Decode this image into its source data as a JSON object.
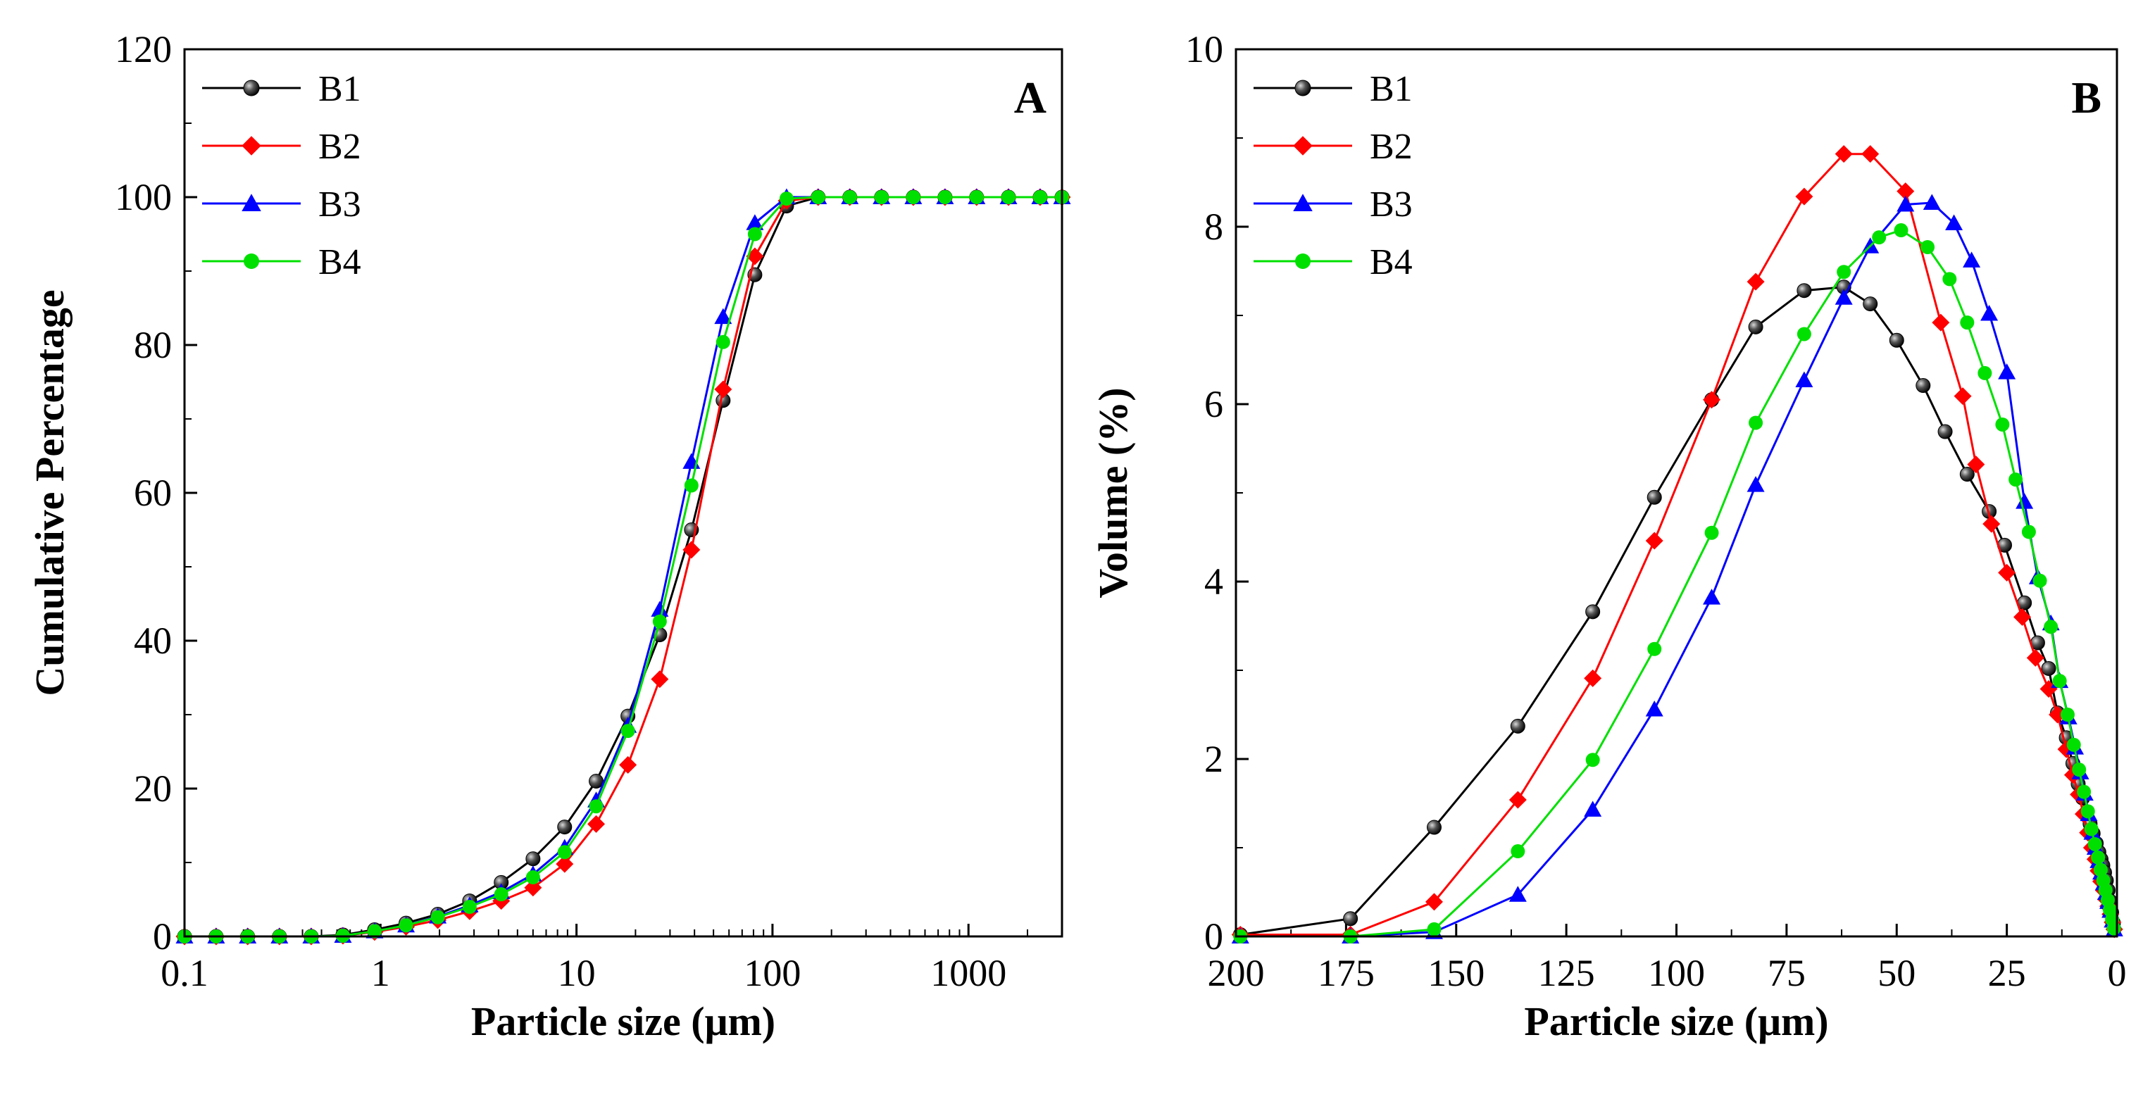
{
  "chart_data": [
    {
      "type": "line",
      "panel": "A",
      "xlabel": "Particle size (μm)",
      "ylabel": "Cumulative Percentage",
      "xscale": "log",
      "xlim": [
        0.1,
        3000
      ],
      "ylim": [
        0,
        120
      ],
      "xticks": [
        0.1,
        1,
        10,
        100,
        1000
      ],
      "xtick_labels": [
        "0.1",
        "1",
        "10",
        "100",
        "1000"
      ],
      "yticks": [
        0,
        20,
        40,
        60,
        80,
        100,
        120
      ],
      "ytick_labels": [
        "0",
        "20",
        "40",
        "60",
        "80",
        "100",
        "120"
      ],
      "legend_position": "top-left",
      "x": [
        0.1,
        0.145,
        0.21,
        0.305,
        0.443,
        0.643,
        0.933,
        1.35,
        1.96,
        2.85,
        4.13,
        6.0,
        8.7,
        12.6,
        18.3,
        26.6,
        38.6,
        56.0,
        81.3,
        118,
        171,
        248,
        360,
        523,
        759,
        1100,
        1600,
        2320,
        3000
      ],
      "series": [
        {
          "name": "B1",
          "color": "#000000",
          "marker": "sphere",
          "values": [
            0,
            0,
            0,
            0,
            0,
            0.2,
            0.9,
            1.8,
            3.0,
            4.8,
            7.3,
            10.5,
            14.8,
            21.0,
            29.8,
            40.8,
            55.0,
            72.5,
            89.5,
            98.8,
            100,
            100,
            100,
            100,
            100,
            100,
            100,
            100,
            100
          ]
        },
        {
          "name": "B2",
          "color": "#ff0000",
          "marker": "diamond",
          "values": [
            0,
            0,
            0,
            0,
            0,
            0.1,
            0.6,
            1.3,
            2.2,
            3.4,
            4.8,
            6.6,
            9.8,
            15.2,
            23.2,
            34.8,
            52.3,
            74.0,
            92.0,
            99.5,
            100,
            100,
            100,
            100,
            100,
            100,
            100,
            100,
            100
          ]
        },
        {
          "name": "B3",
          "color": "#0000ff",
          "marker": "triangle",
          "values": [
            0,
            0,
            0,
            0,
            0,
            0.1,
            0.7,
            1.5,
            2.7,
            4.2,
            6.0,
            8.4,
            12.0,
            18.4,
            28.5,
            44.2,
            64.2,
            83.8,
            96.5,
            100,
            100,
            100,
            100,
            100,
            100,
            100,
            100,
            100,
            100
          ]
        },
        {
          "name": "B4",
          "color": "#00e000",
          "marker": "circle",
          "values": [
            0,
            0,
            0,
            0,
            0,
            0.1,
            0.7,
            1.5,
            2.6,
            4.0,
            5.7,
            8.0,
            11.4,
            17.6,
            27.8,
            42.6,
            61.0,
            80.4,
            95.0,
            99.8,
            100,
            100,
            100,
            100,
            100,
            100,
            100,
            100,
            100
          ]
        }
      ]
    },
    {
      "type": "line",
      "panel": "B",
      "xlabel": "Particle size (μm)",
      "ylabel": "Volume (%)",
      "xscale": "linear",
      "x_reversed": true,
      "xlim": [
        200,
        0
      ],
      "ylim": [
        0,
        10
      ],
      "xticks": [
        200,
        175,
        150,
        125,
        100,
        75,
        50,
        25,
        0
      ],
      "xtick_labels": [
        "200",
        "175",
        "150",
        "125",
        "100",
        "75",
        "50",
        "25",
        "0"
      ],
      "yticks": [
        0,
        2,
        4,
        6,
        8,
        10
      ],
      "ytick_labels": [
        "0",
        "2",
        "4",
        "6",
        "8",
        "10"
      ],
      "legend_position": "top-left",
      "series": [
        {
          "name": "B1",
          "color": "#000000",
          "marker": "sphere",
          "x": [
            199,
            174,
            155,
            136,
            119,
            105,
            92,
            82,
            71,
            62,
            56,
            50,
            44,
            39,
            34,
            29,
            25.5,
            21,
            18,
            15.5,
            13.5,
            11.5,
            10,
            8.8,
            7.8,
            6.9,
            6.1,
            5.4,
            4.7,
            4.1,
            3.6,
            3.2,
            2.8,
            2.4,
            2.0,
            1.6,
            1.2,
            0.8
          ],
          "y": [
            0.02,
            0.2,
            1.23,
            2.37,
            3.66,
            4.95,
            6.05,
            6.87,
            7.28,
            7.32,
            7.13,
            6.72,
            6.21,
            5.69,
            5.21,
            4.79,
            4.41,
            3.76,
            3.31,
            3.02,
            2.52,
            2.24,
            1.95,
            1.72,
            1.56,
            1.38,
            1.27,
            1.16,
            1.05,
            0.95,
            0.87,
            0.8,
            0.72,
            0.63,
            0.52,
            0.4,
            0.27,
            0.15
          ]
        },
        {
          "name": "B2",
          "color": "#ff0000",
          "marker": "diamond",
          "x": [
            199,
            174,
            155,
            136,
            119,
            105,
            92,
            82,
            71,
            62,
            56,
            48,
            40,
            35,
            32,
            28.5,
            25,
            21.5,
            18.5,
            15.5,
            13.5,
            11.5,
            10,
            8.7,
            7.6,
            6.6,
            5.7,
            4.9,
            4.2,
            3.6,
            3.0,
            2.5,
            2.0,
            1.5,
            1.0,
            0.6
          ],
          "y": [
            0.02,
            0.02,
            0.39,
            1.54,
            2.91,
            4.46,
            6.05,
            7.38,
            8.34,
            8.82,
            8.82,
            8.4,
            6.92,
            6.09,
            5.32,
            4.65,
            4.1,
            3.6,
            3.14,
            2.79,
            2.5,
            2.11,
            1.82,
            1.6,
            1.38,
            1.17,
            1.0,
            0.87,
            0.74,
            0.62,
            0.52,
            0.42,
            0.34,
            0.25,
            0.16,
            0.08
          ]
        },
        {
          "name": "B3",
          "color": "#0000ff",
          "marker": "triangle",
          "x": [
            199,
            174,
            155,
            136,
            119,
            105,
            92,
            82,
            71,
            62,
            56,
            48,
            42,
            37,
            33,
            29,
            25,
            21,
            18,
            15,
            13,
            11,
            9.5,
            8.3,
            7.3,
            6.4,
            5.6,
            4.9,
            4.2,
            3.6,
            3.0,
            2.5,
            2.0,
            1.5,
            1.0,
            0.6
          ],
          "y": [
            0.0,
            0.0,
            0.05,
            0.47,
            1.43,
            2.56,
            3.82,
            5.09,
            6.27,
            7.2,
            7.78,
            8.25,
            8.27,
            8.04,
            7.62,
            7.02,
            6.36,
            4.9,
            4.05,
            3.53,
            2.88,
            2.47,
            2.13,
            1.85,
            1.61,
            1.38,
            1.17,
            1.0,
            0.85,
            0.72,
            0.6,
            0.49,
            0.39,
            0.29,
            0.18,
            0.08
          ]
        },
        {
          "name": "B4",
          "color": "#00e000",
          "marker": "circle",
          "x": [
            199,
            174,
            155,
            136,
            119,
            105,
            92,
            82,
            71,
            62,
            54,
            49,
            43,
            38,
            34,
            30,
            26,
            23,
            20,
            17.5,
            15,
            13,
            11.2,
            9.8,
            8.6,
            7.5,
            6.6,
            5.8,
            5.0,
            4.3,
            3.7,
            3.1,
            2.6,
            2.1,
            1.6,
            1.1,
            0.7
          ],
          "y": [
            0.0,
            0.0,
            0.08,
            0.96,
            1.99,
            3.24,
            4.55,
            5.79,
            6.79,
            7.49,
            7.88,
            7.96,
            7.77,
            7.41,
            6.92,
            6.35,
            5.77,
            5.15,
            4.56,
            4.01,
            3.49,
            2.88,
            2.5,
            2.16,
            1.88,
            1.63,
            1.41,
            1.21,
            1.04,
            0.89,
            0.75,
            0.63,
            0.52,
            0.41,
            0.3,
            0.19,
            0.09
          ]
        }
      ]
    }
  ]
}
